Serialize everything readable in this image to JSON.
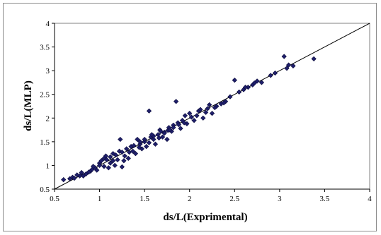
{
  "chart_data": {
    "type": "scatter",
    "title": "",
    "xlabel": "ds/L(Exprimental)",
    "ylabel": "ds/L(MLP)",
    "xlim": [
      0.5,
      4
    ],
    "ylim": [
      0.5,
      4
    ],
    "xticks": [
      "0.5",
      "1",
      "1.5",
      "2",
      "2.5",
      "3",
      "3.5",
      "4"
    ],
    "yticks": [
      "0.5",
      "1",
      "1.5",
      "2",
      "2.5",
      "3",
      "3.5",
      "4"
    ],
    "grid": false,
    "legend": "none",
    "marker_color": "#1f1f6b",
    "marker_shape": "diamond",
    "reference_line": {
      "from": [
        0.5,
        0.5
      ],
      "to": [
        4,
        4
      ]
    },
    "points": [
      [
        0.6,
        0.7
      ],
      [
        0.67,
        0.72
      ],
      [
        0.7,
        0.75
      ],
      [
        0.72,
        0.73
      ],
      [
        0.78,
        0.78
      ],
      [
        0.8,
        0.85
      ],
      [
        0.82,
        0.78
      ],
      [
        0.85,
        0.82
      ],
      [
        0.9,
        0.88
      ],
      [
        0.92,
        0.92
      ],
      [
        0.95,
        0.95
      ],
      [
        0.97,
        0.9
      ],
      [
        1.0,
        1.05
      ],
      [
        1.02,
        1.1
      ],
      [
        1.05,
        1.15
      ],
      [
        1.07,
        1.2
      ],
      [
        1.1,
        0.95
      ],
      [
        1.12,
        1.05
      ],
      [
        1.15,
        1.25
      ],
      [
        1.17,
        1.0
      ],
      [
        1.2,
        1.12
      ],
      [
        1.22,
        1.3
      ],
      [
        1.23,
        1.55
      ],
      [
        1.25,
        0.97
      ],
      [
        1.27,
        1.1
      ],
      [
        1.3,
        1.35
      ],
      [
        1.32,
        1.15
      ],
      [
        1.35,
        1.4
      ],
      [
        1.37,
        1.3
      ],
      [
        1.4,
        1.25
      ],
      [
        1.42,
        1.55
      ],
      [
        1.45,
        1.45
      ],
      [
        1.47,
        1.35
      ],
      [
        1.5,
        1.5
      ],
      [
        1.52,
        1.4
      ],
      [
        1.55,
        2.15
      ],
      [
        1.57,
        1.6
      ],
      [
        1.6,
        1.55
      ],
      [
        1.62,
        1.45
      ],
      [
        1.65,
        1.65
      ],
      [
        1.67,
        1.75
      ],
      [
        1.7,
        1.6
      ],
      [
        1.72,
        1.7
      ],
      [
        1.75,
        1.55
      ],
      [
        1.77,
        1.8
      ],
      [
        1.8,
        1.72
      ],
      [
        1.82,
        1.85
      ],
      [
        1.85,
        2.35
      ],
      [
        1.87,
        1.9
      ],
      [
        1.9,
        1.78
      ],
      [
        1.92,
        1.95
      ],
      [
        1.95,
        2.05
      ],
      [
        1.97,
        1.88
      ],
      [
        2.0,
        2.1
      ],
      [
        2.05,
        1.95
      ],
      [
        2.1,
        2.15
      ],
      [
        2.15,
        2.0
      ],
      [
        2.2,
        2.2
      ],
      [
        2.25,
        2.1
      ],
      [
        2.3,
        2.25
      ],
      [
        2.35,
        2.3
      ],
      [
        2.4,
        2.35
      ],
      [
        2.45,
        2.45
      ],
      [
        2.5,
        2.8
      ],
      [
        2.55,
        2.55
      ],
      [
        2.6,
        2.6
      ],
      [
        2.65,
        2.65
      ],
      [
        2.7,
        2.7
      ],
      [
        2.75,
        2.78
      ],
      [
        2.8,
        2.75
      ],
      [
        2.9,
        2.9
      ],
      [
        2.95,
        2.95
      ],
      [
        3.05,
        3.3
      ],
      [
        3.08,
        3.05
      ],
      [
        3.1,
        3.12
      ],
      [
        3.15,
        3.1
      ],
      [
        3.38,
        3.25
      ],
      [
        1.0,
        1.0
      ],
      [
        1.05,
        0.98
      ],
      [
        1.12,
        1.18
      ],
      [
        1.18,
        1.22
      ],
      [
        1.28,
        1.2
      ],
      [
        1.33,
        1.28
      ],
      [
        1.38,
        1.42
      ],
      [
        1.44,
        1.38
      ],
      [
        1.5,
        1.55
      ],
      [
        1.55,
        1.48
      ],
      [
        1.6,
        1.62
      ],
      [
        1.66,
        1.58
      ],
      [
        1.72,
        1.68
      ],
      [
        1.76,
        1.74
      ],
      [
        1.82,
        1.8
      ],
      [
        1.88,
        1.86
      ],
      [
        1.94,
        1.9
      ],
      [
        2.02,
        2.02
      ],
      [
        2.08,
        2.05
      ],
      [
        2.18,
        2.12
      ],
      [
        2.28,
        2.22
      ],
      [
        2.38,
        2.32
      ],
      [
        0.75,
        0.8
      ],
      [
        0.88,
        0.86
      ],
      [
        0.93,
        0.98
      ],
      [
        1.08,
        1.12
      ],
      [
        1.15,
        1.1
      ],
      [
        1.25,
        1.28
      ],
      [
        1.45,
        1.5
      ],
      [
        1.58,
        1.65
      ],
      [
        1.68,
        1.72
      ],
      [
        1.78,
        1.75
      ],
      [
        2.12,
        2.18
      ],
      [
        2.22,
        2.28
      ],
      [
        2.62,
        2.65
      ],
      [
        2.72,
        2.74
      ]
    ]
  }
}
